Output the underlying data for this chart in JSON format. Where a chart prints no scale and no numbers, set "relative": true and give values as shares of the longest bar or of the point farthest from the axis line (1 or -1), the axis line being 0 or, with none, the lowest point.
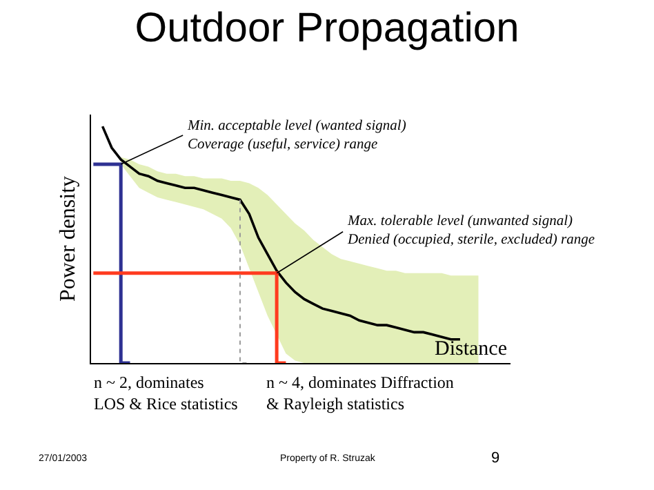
{
  "chart_data": {
    "type": "line",
    "title": "Outdoor Propagation",
    "xlabel": "Distance",
    "ylabel": "Power density",
    "relative": true,
    "categories": [
      null,
      null,
      null,
      null,
      null,
      null,
      null,
      null,
      null,
      null,
      null,
      null,
      null,
      null,
      null,
      null,
      null,
      null,
      null,
      null,
      null,
      null,
      null,
      null,
      null,
      null,
      null,
      null,
      null,
      null,
      null,
      null,
      null,
      null,
      null,
      null,
      null,
      null,
      null,
      null,
      null,
      null,
      null
    ],
    "series": [
      {
        "color": "#000000",
        "values": [
          null,
          1.0,
          0.91,
          0.86,
          0.83,
          0.8,
          0.79,
          0.77,
          0.76,
          0.75,
          0.74,
          0.74,
          0.73,
          0.72,
          0.71,
          0.7,
          0.69,
          0.63,
          0.53,
          0.46,
          0.39,
          0.34,
          0.3,
          0.27,
          0.25,
          0.23,
          0.22,
          0.21,
          0.2,
          0.18,
          0.17,
          0.16,
          0.16,
          0.15,
          0.14,
          0.13,
          0.13,
          0.12,
          0.11,
          0.1,
          0.1,
          null,
          null
        ],
        "upper": [
          null,
          null,
          null,
          0.87,
          0.86,
          0.84,
          0.83,
          0.81,
          0.8,
          0.8,
          0.79,
          0.79,
          0.78,
          0.78,
          0.78,
          0.77,
          0.77,
          0.76,
          0.74,
          0.71,
          0.67,
          0.63,
          0.59,
          0.56,
          0.52,
          0.49,
          0.46,
          0.44,
          0.43,
          0.42,
          0.41,
          0.4,
          0.39,
          0.39,
          0.38,
          0.38,
          0.38,
          0.38,
          0.38,
          0.37,
          0.37,
          0.37,
          0.37
        ],
        "lower": [
          null,
          null,
          null,
          0.84,
          0.79,
          0.74,
          0.72,
          0.7,
          0.69,
          0.68,
          0.67,
          0.66,
          0.65,
          0.63,
          0.61,
          0.57,
          0.5,
          0.4,
          0.3,
          0.2,
          0.12,
          0.04,
          0.01,
          0,
          0,
          0,
          0,
          0,
          0,
          0,
          0,
          0,
          0,
          0,
          0,
          0,
          0,
          0,
          0,
          0,
          0,
          0,
          0
        ]
      },
      {
        "type": "step",
        "color": "#2e3192",
        "values": [
          0.84,
          0.84,
          0.84,
          0.84,
          0,
          null,
          null,
          null,
          null,
          null,
          null,
          null,
          null,
          null,
          null,
          null,
          null,
          null,
          null,
          null,
          null,
          null,
          null,
          null,
          null,
          null,
          null,
          null,
          null,
          null,
          null,
          null,
          null,
          null,
          null,
          null,
          null,
          null,
          null,
          null,
          null,
          null,
          null
        ]
      },
      {
        "type": "step",
        "color": "#ff3b1f",
        "values": [
          0.38,
          0.38,
          0.38,
          0.38,
          0.38,
          0.38,
          0.38,
          0.38,
          0.38,
          0.38,
          0.38,
          0.38,
          0.38,
          0.38,
          0.38,
          0.38,
          0.38,
          0.38,
          0.38,
          0.38,
          0.38,
          0,
          null,
          null,
          null,
          null,
          null,
          null,
          null,
          null,
          null,
          null,
          null,
          null,
          null,
          null,
          null,
          null,
          null,
          null,
          null,
          null,
          null
        ]
      },
      {
        "type": "step",
        "color": "#999999",
        "line_style": "dotted",
        "values": [
          null,
          null,
          null,
          null,
          null,
          null,
          null,
          null,
          null,
          null,
          null,
          null,
          null,
          null,
          null,
          null,
          0.69,
          0,
          null,
          null,
          null,
          null,
          null,
          null,
          null,
          null,
          null,
          null,
          null,
          null,
          null,
          null,
          null,
          null,
          null,
          null,
          null,
          null,
          null,
          null,
          null,
          null,
          null
        ]
      }
    ],
    "annotations": [
      "Min. acceptable level (wanted signal)\nCoverage (useful, service) range",
      {
        "text": "Max. tolerable level (unwanted signal)\nDenied (occupied, sterile, excluded) range",
        "y": 0.38
      },
      "n ~ 2, dominates\nLOS & Rice statistics",
      "n ~ 4, dominates Diffraction\n& Rayleigh statistics",
      "27/01/2003",
      "Property of R. Struzak",
      "9"
    ]
  }
}
